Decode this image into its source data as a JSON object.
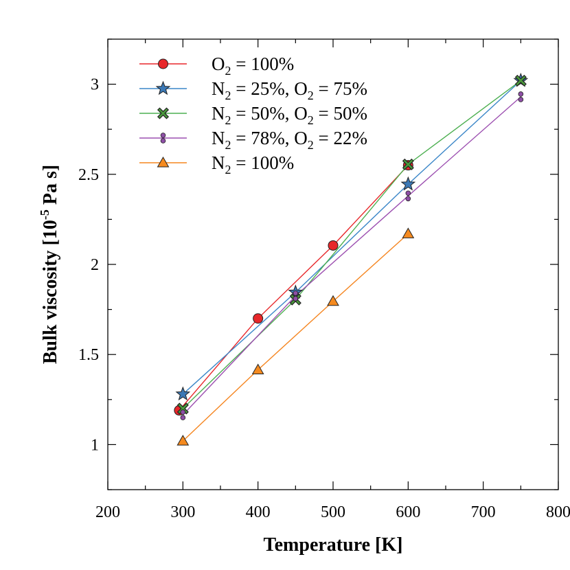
{
  "chart_data": {
    "type": "line",
    "xlabel": "Temperature [K]",
    "ylabel": {
      "prefix": "Bulk viscosity [10",
      "exponent": "-5",
      "suffix": " Pa s]"
    },
    "xlim": [
      200,
      800
    ],
    "ylim": [
      0.75,
      3.25
    ],
    "xticks": [
      200,
      300,
      400,
      500,
      600,
      700,
      800
    ],
    "yticks": [
      1,
      1.5,
      2,
      2.5,
      3
    ],
    "grid": false,
    "legend_position": "top-left",
    "series": [
      {
        "name": "O2 = 100%",
        "label_parts": [
          [
            "O",
            "2",
            " = 100%"
          ]
        ],
        "color": "#e8272a",
        "marker": "circle",
        "marker_fill": "#e8272a",
        "x": [
          295,
          400,
          500,
          600
        ],
        "y": [
          1.19,
          1.7,
          2.105,
          2.55
        ]
      },
      {
        "name": "N2 = 25%, O2 = 75%",
        "label_parts": [
          [
            "N",
            "2",
            " = 25%, "
          ],
          [
            "O",
            "2",
            " = 75%"
          ]
        ],
        "color": "#3a86c8",
        "marker": "star",
        "marker_fill": "#3b78b5",
        "x": [
          300,
          450,
          600,
          750
        ],
        "y": [
          1.28,
          1.845,
          2.445,
          3.02
        ]
      },
      {
        "name": "N2 = 50%, O2 = 50%",
        "label_parts": [
          [
            "N",
            "2",
            " = 50%, "
          ],
          [
            "O",
            "2",
            " = 50%"
          ]
        ],
        "color": "#4caf50",
        "marker": "x",
        "marker_fill": "#4a9a3c",
        "x": [
          300,
          450,
          600,
          750
        ],
        "y": [
          1.2,
          1.805,
          2.555,
          3.02
        ]
      },
      {
        "name": "N2 = 78%, O2 = 22%",
        "label_parts": [
          [
            "N",
            "2",
            " = 78%, "
          ],
          [
            "O",
            "2",
            " = 22%"
          ]
        ],
        "color": "#9c4fb0",
        "marker": "dumbbell",
        "marker_fill": "#8e4fa6",
        "x": [
          300,
          450,
          600,
          750
        ],
        "y": [
          1.165,
          1.825,
          2.38,
          2.93
        ]
      },
      {
        "name": "N2 = 100%",
        "label_parts": [
          [
            "N",
            "2",
            " = 100%"
          ]
        ],
        "color": "#f5851f",
        "marker": "triangle",
        "marker_fill": "#f58a1f",
        "x": [
          300,
          400,
          500,
          600
        ],
        "y": [
          1.02,
          1.415,
          1.795,
          2.17
        ]
      }
    ]
  }
}
